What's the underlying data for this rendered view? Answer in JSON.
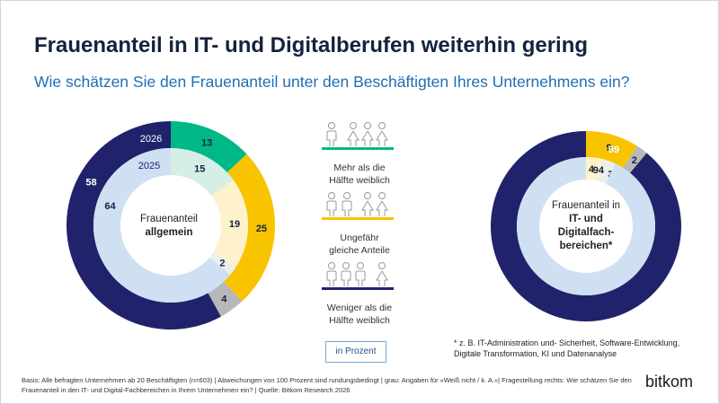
{
  "header": {
    "title": "Frauenanteil in IT- und Digitalberufen weiterhin gering",
    "subtitle": "Wie schätzen Sie den Frauenanteil unter den Beschäftigten Ihres Unternehmens ein?"
  },
  "colors": {
    "green": "#00b887",
    "green_light": "#d6efe6",
    "yellow": "#f8c400",
    "yellow_light": "#fdf2cc",
    "gray": "#b8b8b8",
    "gray_light": "#eeeeee",
    "navy": "#20236b",
    "blue_light": "#cfe0f3",
    "title": "#13233f",
    "subtitle": "#1f6fb5"
  },
  "chart_data": [
    {
      "type": "donut",
      "center_label": [
        "Frauenanteil",
        "allgemein"
      ],
      "categories": [
        "Mehr als die Hälfte weiblich",
        "Ungefähr gleiche Anteile",
        "Weiß nicht / k. A.",
        "Weniger als die Hälfte weiblich"
      ],
      "series": [
        {
          "name": "2026",
          "ring": "outer",
          "values": [
            13,
            25,
            4,
            58
          ]
        },
        {
          "name": "2025",
          "ring": "inner",
          "values": [
            15,
            19,
            2,
            64
          ]
        }
      ],
      "unit": "in Prozent"
    },
    {
      "type": "donut",
      "center_label": [
        "Frauenanteil in",
        "IT- und",
        "Digitalfach-",
        "bereichen*"
      ],
      "categories": [
        "Mehr als die Hälfte weiblich",
        "Ungefähr gleiche Anteile",
        "Weiß nicht / k. A.",
        "Weniger als die Hälfte weiblich"
      ],
      "series": [
        {
          "ring": "outer",
          "values": [
            0,
            9,
            2,
            89
          ]
        },
        {
          "ring": "inner",
          "values": [
            0,
            4,
            3,
            94
          ]
        }
      ],
      "unit": "in Prozent"
    }
  ],
  "legend": [
    {
      "label_lines": [
        "Mehr als die",
        "Hälfte weiblich"
      ],
      "color": "#00b887",
      "icon": "people-icon-mostly-female"
    },
    {
      "label_lines": [
        "Ungefähr",
        "gleiche Anteile"
      ],
      "color": "#f8c400",
      "icon": "people-icon-equal"
    },
    {
      "label_lines": [
        "Weniger als die",
        "Hälfte weiblich"
      ],
      "color": "#20236b",
      "icon": "people-icon-mostly-male"
    }
  ],
  "unit_label": "in Prozent",
  "footnote": "* z. B. IT-Administration und- Sicherheit, Software-Entwicklung, Digitale Transformation, KI und Datenanalyse",
  "basis": "Basis: Alle befragten Unternehmen ab 20 Beschäftigten (n=603) | Abweichungen von 100 Prozent sind rundungsbedingt | grau: Angaben für »Weiß nicht / k. A.«| Fragestellung rechts: Wie schätzen Sie den Frauenanteil in den IT- und Digital-Fachbereichen in Ihrem Unternehmen ein? | Quelle: Bitkom Research 2026",
  "logo": "bitkom"
}
